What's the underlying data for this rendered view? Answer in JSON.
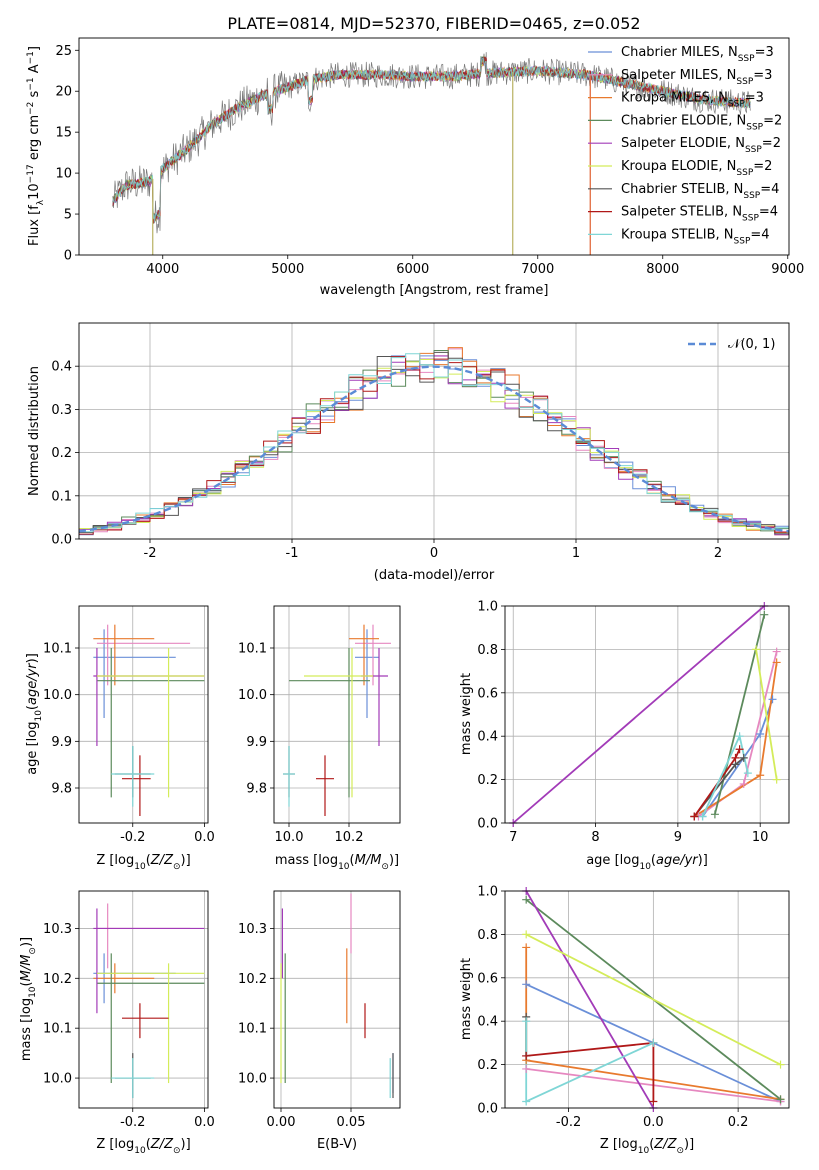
{
  "title": "PLATE=0814, MJD=52370, FIBERID=0465, z=0.052",
  "colors": {
    "Chabrier MILES": "#6a8fd8",
    "Salpeter MILES": "#e688c0",
    "Kroupa MILES": "#e87a2e",
    "Chabrier ELODIE": "#5c8a5c",
    "Salpeter ELODIE": "#a23bb8",
    "Kroupa ELODIE": "#d4ec5a",
    "Chabrier STELIB": "#555555",
    "Salpeter STELIB": "#b01818",
    "Kroupa STELIB": "#7fd6d6",
    "gaussian": "#5b8bd6",
    "data": "#7a7a7a"
  },
  "chart_data": [
    {
      "type": "line",
      "panel": "spectrum",
      "xlabel": "wavelength [Angstrom, rest frame]",
      "ylabel": "Flux [f_λ 10^-17 erg cm^-2 s^-1 A^-1]",
      "xlim": [
        3330,
        9010
      ],
      "ylim": [
        0,
        26.5
      ],
      "xticks": [
        4000,
        5000,
        6000,
        7000,
        8000,
        9000
      ],
      "yticks": [
        0,
        5,
        10,
        15,
        20,
        25
      ],
      "legend_position": "top-right",
      "legend": [
        {
          "name": "Chabrier MILES, N",
          "sub": "SSP",
          "suffix": "=3"
        },
        {
          "name": "Salpeter MILES, N",
          "sub": "SSP",
          "suffix": "=3"
        },
        {
          "name": "Kroupa MILES, N",
          "sub": "SSP",
          "suffix": "=3"
        },
        {
          "name": "Chabrier ELODIE, N",
          "sub": "SSP",
          "suffix": "=2"
        },
        {
          "name": "Salpeter ELODIE, N",
          "sub": "SSP",
          "suffix": "=2"
        },
        {
          "name": "Kroupa ELODIE, N",
          "sub": "SSP",
          "suffix": "=2"
        },
        {
          "name": "Chabrier STELIB, N",
          "sub": "SSP",
          "suffix": "=4"
        },
        {
          "name": "Salpeter STELIB, N",
          "sub": "SSP",
          "suffix": "=4"
        },
        {
          "name": "Kroupa STELIB, N",
          "sub": "SSP",
          "suffix": "=4"
        }
      ],
      "continuum_shape": [
        [
          3600,
          6.5
        ],
        [
          3700,
          8.5
        ],
        [
          3900,
          9
        ],
        [
          4000,
          10.5
        ],
        [
          4200,
          13
        ],
        [
          4400,
          16
        ],
        [
          4600,
          18
        ],
        [
          4800,
          19.5
        ],
        [
          5000,
          20.5
        ],
        [
          5200,
          21.5
        ],
        [
          5400,
          22
        ],
        [
          5600,
          22
        ],
        [
          5800,
          22
        ],
        [
          6000,
          21.8
        ],
        [
          6300,
          21.8
        ],
        [
          6600,
          22.2
        ],
        [
          7000,
          22.5
        ],
        [
          7400,
          22
        ],
        [
          7700,
          21
        ],
        [
          8000,
          20
        ],
        [
          8300,
          19
        ],
        [
          8700,
          18.5
        ]
      ]
    },
    {
      "type": "area",
      "panel": "residual-histogram",
      "xlabel": "(data-model)/error",
      "ylabel": "Normed distribution",
      "xlim": [
        -2.5,
        2.5
      ],
      "ylim": [
        0,
        0.5
      ],
      "xticks": [
        -2,
        -1,
        0,
        1,
        2
      ],
      "yticks": [
        0.0,
        0.1,
        0.2,
        0.3,
        0.4
      ],
      "grid": true,
      "legend_position": "top-right",
      "gaussian_label": "𝒩(0, 1)",
      "bin_width": 0.1,
      "x_start": -2.5
    },
    {
      "type": "scatter",
      "panel": "age-vs-Z",
      "xlabel": "Z [log10(Z/Z⊙)]",
      "ylabel": "age [log10(age/yr)]",
      "xlim": [
        -0.35,
        0.01
      ],
      "ylim": [
        9.725,
        10.19
      ],
      "xticks": [
        -0.2,
        0.0
      ],
      "yticks": [
        9.8,
        9.9,
        10.0,
        10.1
      ],
      "grid": true
    },
    {
      "type": "scatter",
      "panel": "age-vs-mass",
      "xlabel": "mass [log10(M/M⊙)]",
      "ylabel": "",
      "xlim": [
        9.95,
        10.37
      ],
      "ylim": [
        9.725,
        10.19
      ],
      "xticks": [
        10.0,
        10.2
      ],
      "yticks": [
        9.8,
        9.9,
        10.0,
        10.1
      ],
      "grid": true
    },
    {
      "type": "line",
      "panel": "mass-weight-vs-age",
      "xlabel": "age [log10(age/yr)]",
      "ylabel": "mass weight",
      "xlim": [
        6.9,
        10.35
      ],
      "ylim": [
        0,
        1.0
      ],
      "xticks": [
        7,
        8,
        9,
        10
      ],
      "yticks": [
        0.0,
        0.2,
        0.4,
        0.6,
        0.8,
        1.0
      ],
      "grid": true,
      "series": [
        {
          "name": "Chabrier MILES",
          "points": [
            [
              9.3,
              0.03
            ],
            [
              10.0,
              0.41
            ],
            [
              10.15,
              0.57
            ]
          ]
        },
        {
          "name": "Salpeter MILES",
          "points": [
            [
              9.25,
              0.03
            ],
            [
              9.8,
              0.18
            ],
            [
              10.2,
              0.79
            ]
          ]
        },
        {
          "name": "Kroupa MILES",
          "points": [
            [
              9.2,
              0.03
            ],
            [
              10.0,
              0.22
            ],
            [
              10.2,
              0.74
            ]
          ]
        },
        {
          "name": "Chabrier ELODIE",
          "points": [
            [
              9.45,
              0.04
            ],
            [
              10.05,
              0.96
            ]
          ]
        },
        {
          "name": "Salpeter ELODIE",
          "points": [
            [
              7.0,
              0.0
            ],
            [
              10.05,
              1.0
            ]
          ]
        },
        {
          "name": "Kroupa ELODIE",
          "points": [
            [
              9.95,
              0.8
            ],
            [
              10.2,
              0.2
            ]
          ]
        },
        {
          "name": "Chabrier STELIB",
          "points": [
            [
              9.2,
              0.03
            ],
            [
              9.7,
              0.27
            ],
            [
              9.8,
              0.3
            ]
          ]
        },
        {
          "name": "Salpeter STELIB",
          "points": [
            [
              9.2,
              0.03
            ],
            [
              9.7,
              0.3
            ],
            [
              9.75,
              0.34
            ]
          ]
        },
        {
          "name": "Kroupa STELIB",
          "points": [
            [
              9.3,
              0.03
            ],
            [
              9.75,
              0.4
            ],
            [
              9.85,
              0.23
            ]
          ]
        }
      ]
    },
    {
      "type": "scatter",
      "panel": "mass-vs-Z",
      "xlabel": "Z [log10(Z/Z⊙)]",
      "ylabel": "mass [log10(M/M⊙)]",
      "xlim": [
        -0.35,
        0.01
      ],
      "ylim": [
        9.94,
        10.375
      ],
      "xticks": [
        -0.2,
        0.0
      ],
      "yticks": [
        10.0,
        10.1,
        10.2,
        10.3
      ],
      "grid": true
    },
    {
      "type": "scatter",
      "panel": "mass-vs-EBV",
      "xlabel": "E(B-V)",
      "ylabel": "",
      "xlim": [
        -0.005,
        0.085
      ],
      "ylim": [
        9.94,
        10.375
      ],
      "xticks": [
        0.0,
        0.05
      ],
      "yticks": [
        10.0,
        10.1,
        10.2,
        10.3
      ],
      "grid": true
    },
    {
      "type": "line",
      "panel": "mass-weight-vs-Z",
      "xlabel": "Z [log10(Z/Z⊙)]",
      "ylabel": "mass weight",
      "xlim": [
        -0.35,
        0.32
      ],
      "ylim": [
        0,
        1.0
      ],
      "xticks": [
        -0.2,
        0.0,
        0.2
      ],
      "yticks": [
        0.0,
        0.2,
        0.4,
        0.6,
        0.8,
        1.0
      ],
      "grid": true,
      "series": [
        {
          "name": "Chabrier MILES",
          "points": [
            [
              -0.3,
              0.57
            ],
            [
              0.3,
              0.03
            ]
          ]
        },
        {
          "name": "Salpeter MILES",
          "points": [
            [
              -0.3,
              0.18
            ],
            [
              0.3,
              0.03
            ]
          ]
        },
        {
          "name": "Kroupa MILES",
          "points": [
            [
              -0.3,
              0.74
            ],
            [
              -0.3,
              0.22
            ],
            [
              0.3,
              0.04
            ]
          ]
        },
        {
          "name": "Chabrier ELODIE",
          "points": [
            [
              -0.3,
              0.96
            ],
            [
              0.3,
              0.04
            ]
          ]
        },
        {
          "name": "Salpeter ELODIE",
          "points": [
            [
              -0.3,
              1.0
            ],
            [
              0.0,
              0.0
            ]
          ]
        },
        {
          "name": "Kroupa ELODIE",
          "points": [
            [
              -0.3,
              0.8
            ],
            [
              0.3,
              0.2
            ]
          ]
        },
        {
          "name": "Chabrier STELIB",
          "points": [
            [
              -0.3,
              0.42
            ],
            [
              -0.3,
              0.24
            ]
          ]
        },
        {
          "name": "Salpeter STELIB",
          "points": [
            [
              -0.3,
              0.24
            ],
            [
              0.0,
              0.3
            ],
            [
              0.0,
              0.03
            ]
          ]
        },
        {
          "name": "Kroupa STELIB",
          "points": [
            [
              -0.3,
              0.4
            ],
            [
              -0.3,
              0.03
            ],
            [
              0.0,
              0.3
            ]
          ]
        }
      ]
    }
  ],
  "errorbars": {
    "age_Z": [
      {
        "s": "Chabrier MILES",
        "x": -0.28,
        "y": 10.08,
        "xe": [
          -0.31,
          -0.08
        ],
        "ye": [
          9.95,
          10.14
        ]
      },
      {
        "s": "Salpeter MILES",
        "x": -0.27,
        "y": 10.11,
        "xe": [
          -0.3,
          -0.04
        ],
        "ye": [
          10.02,
          10.15
        ]
      },
      {
        "s": "Kroupa MILES",
        "x": -0.25,
        "y": 10.12,
        "xe": [
          -0.31,
          -0.14
        ],
        "ye": [
          10.02,
          10.15
        ]
      },
      {
        "s": "Chabrier ELODIE",
        "x": -0.26,
        "y": 10.03,
        "xe": [
          -0.3,
          0.0
        ],
        "ye": [
          9.78,
          10.1
        ]
      },
      {
        "s": "Salpeter ELODIE",
        "x": -0.3,
        "y": 10.04,
        "xe": [
          -0.31,
          0.0
        ],
        "ye": [
          9.89,
          10.1
        ]
      },
      {
        "s": "Kroupa ELODIE",
        "x": -0.1,
        "y": 10.04,
        "xe": [
          -0.3,
          0.0
        ],
        "ye": [
          9.78,
          10.1
        ]
      },
      {
        "s": "Chabrier STELIB",
        "x": -0.2,
        "y": 9.83,
        "xe": [
          -0.25,
          -0.15
        ],
        "ye": [
          9.78,
          9.89
        ]
      },
      {
        "s": "Salpeter STELIB",
        "x": -0.18,
        "y": 9.82,
        "xe": [
          -0.23,
          -0.15
        ],
        "ye": [
          9.74,
          9.87
        ]
      },
      {
        "s": "Kroupa STELIB",
        "x": -0.2,
        "y": 9.83,
        "xe": [
          -0.26,
          -0.14
        ],
        "ye": [
          9.76,
          9.89
        ]
      }
    ],
    "age_mass": [
      {
        "s": "Chabrier MILES",
        "x": 10.26,
        "y": 10.08,
        "xe": [
          10.22,
          10.3
        ],
        "ye": [
          9.95,
          10.14
        ]
      },
      {
        "s": "Salpeter MILES",
        "x": 10.28,
        "y": 10.11,
        "xe": [
          10.22,
          10.34
        ],
        "ye": [
          10.02,
          10.15
        ]
      },
      {
        "s": "Kroupa MILES",
        "x": 10.25,
        "y": 10.12,
        "xe": [
          10.2,
          10.3
        ],
        "ye": [
          10.02,
          10.15
        ]
      },
      {
        "s": "Chabrier ELODIE",
        "x": 10.2,
        "y": 10.03,
        "xe": [
          10.0,
          10.27
        ],
        "ye": [
          9.78,
          10.1
        ]
      },
      {
        "s": "Salpeter ELODIE",
        "x": 10.3,
        "y": 10.04,
        "xe": [
          10.24,
          10.33
        ],
        "ye": [
          9.89,
          10.1
        ]
      },
      {
        "s": "Kroupa ELODIE",
        "x": 10.21,
        "y": 10.04,
        "xe": [
          10.05,
          10.28
        ],
        "ye": [
          9.78,
          10.1
        ]
      },
      {
        "s": "Chabrier STELIB",
        "x": 10.0,
        "y": 9.83,
        "xe": [
          9.98,
          10.02
        ],
        "ye": [
          9.78,
          9.89
        ]
      },
      {
        "s": "Salpeter STELIB",
        "x": 10.12,
        "y": 9.82,
        "xe": [
          10.09,
          10.15
        ],
        "ye": [
          9.74,
          9.87
        ]
      },
      {
        "s": "Kroupa STELIB",
        "x": 10.0,
        "y": 9.83,
        "xe": [
          9.98,
          10.02
        ],
        "ye": [
          9.76,
          9.89
        ]
      }
    ],
    "mass_Z": [
      {
        "s": "Chabrier MILES",
        "x": -0.28,
        "y": 10.21,
        "xe": [
          -0.31,
          -0.08
        ],
        "ye": [
          10.15,
          10.25
        ]
      },
      {
        "s": "Salpeter MILES",
        "x": -0.27,
        "y": 10.3,
        "xe": [
          -0.3,
          -0.04
        ],
        "ye": [
          10.22,
          10.35
        ]
      },
      {
        "s": "Kroupa MILES",
        "x": -0.25,
        "y": 10.2,
        "xe": [
          -0.31,
          -0.14
        ],
        "ye": [
          10.17,
          10.23
        ]
      },
      {
        "s": "Chabrier ELODIE",
        "x": -0.26,
        "y": 10.19,
        "xe": [
          -0.3,
          0.0
        ],
        "ye": [
          9.99,
          10.25
        ]
      },
      {
        "s": "Salpeter ELODIE",
        "x": -0.3,
        "y": 10.3,
        "xe": [
          -0.31,
          0.0
        ],
        "ye": [
          10.13,
          10.34
        ]
      },
      {
        "s": "Kroupa ELODIE",
        "x": -0.1,
        "y": 10.21,
        "xe": [
          -0.3,
          0.0
        ],
        "ye": [
          9.99,
          10.23
        ]
      },
      {
        "s": "Chabrier STELIB",
        "x": -0.2,
        "y": 10.0,
        "xe": [
          -0.25,
          -0.15
        ],
        "ye": [
          9.96,
          10.05
        ]
      },
      {
        "s": "Salpeter STELIB",
        "x": -0.18,
        "y": 10.12,
        "xe": [
          -0.23,
          -0.1
        ],
        "ye": [
          10.08,
          10.15
        ]
      },
      {
        "s": "Kroupa STELIB",
        "x": -0.2,
        "y": 10.0,
        "xe": [
          -0.26,
          -0.14
        ],
        "ye": [
          9.96,
          10.04
        ]
      }
    ],
    "mass_ebv": [
      {
        "s": "Chabrier MILES",
        "x": 0.08,
        "y": 10.02,
        "xe": [
          0.08,
          0.08
        ],
        "ye": [
          9.97,
          10.05
        ]
      },
      {
        "s": "Salpeter MILES",
        "x": 0.05,
        "y": 10.3,
        "xe": [
          0.05,
          0.05
        ],
        "ye": [
          10.25,
          10.37
        ]
      },
      {
        "s": "Kroupa MILES",
        "x": 0.047,
        "y": 10.18,
        "xe": [
          0.047,
          0.047
        ],
        "ye": [
          10.11,
          10.26
        ]
      },
      {
        "s": "Chabrier ELODIE",
        "x": 0.003,
        "y": 10.12,
        "xe": [
          0.003,
          0.003
        ],
        "ye": [
          9.99,
          10.25
        ]
      },
      {
        "s": "Salpeter ELODIE",
        "x": 0.001,
        "y": 10.27,
        "xe": [
          0.001,
          0.001
        ],
        "ye": [
          10.2,
          10.34
        ]
      },
      {
        "s": "Kroupa ELODIE",
        "x": 0.0,
        "y": 10.1,
        "xe": [
          0.0,
          0.0
        ],
        "ye": [
          9.99,
          10.23
        ]
      },
      {
        "s": "Chabrier STELIB",
        "x": 0.08,
        "y": 10.0,
        "xe": [
          0.08,
          0.08
        ],
        "ye": [
          9.96,
          10.05
        ]
      },
      {
        "s": "Salpeter STELIB",
        "x": 0.06,
        "y": 10.12,
        "xe": [
          0.06,
          0.06
        ],
        "ye": [
          10.08,
          10.15
        ]
      },
      {
        "s": "Kroupa STELIB",
        "x": 0.078,
        "y": 10.0,
        "xe": [
          0.078,
          0.078
        ],
        "ye": [
          9.96,
          10.04
        ]
      }
    ]
  }
}
